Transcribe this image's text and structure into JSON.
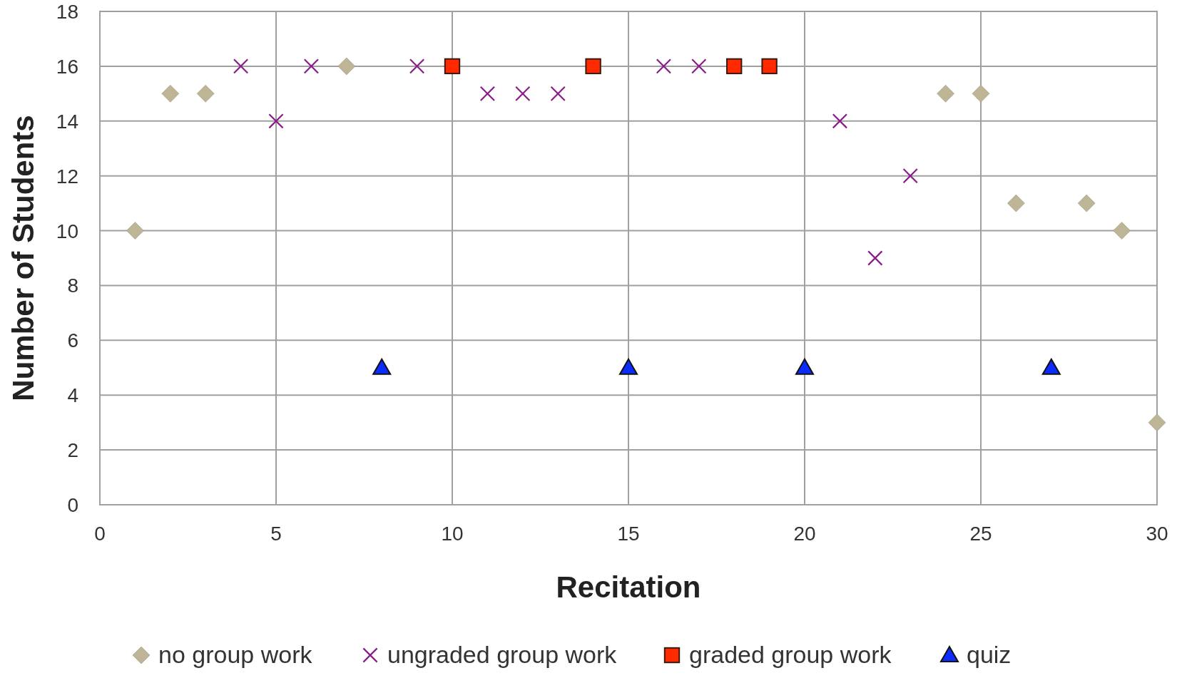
{
  "chart_data": {
    "type": "scatter",
    "xlabel": "Recitation",
    "ylabel": "Number of Students",
    "xlim": [
      0,
      30
    ],
    "xticks": [
      0,
      5,
      10,
      15,
      20,
      25,
      30
    ],
    "ylim": [
      0,
      18
    ],
    "yticks": [
      0,
      2,
      4,
      6,
      8,
      10,
      12,
      14,
      16,
      18
    ],
    "grid": true,
    "legend": "bottom",
    "series": [
      {
        "name": "no group work",
        "color": "#bdb596",
        "marker": "diamond",
        "x": [
          1,
          2,
          3,
          7,
          24,
          25,
          26,
          28,
          29,
          30
        ],
        "values": [
          10,
          15,
          15,
          16,
          15,
          15,
          11,
          11,
          10,
          3
        ]
      },
      {
        "name": "ungraded group work",
        "color": "#8a1c8a",
        "marker": "cross",
        "x": [
          4,
          5,
          6,
          9,
          11,
          12,
          13,
          16,
          17,
          21,
          22,
          23
        ],
        "values": [
          16,
          14,
          16,
          16,
          15,
          15,
          15,
          16,
          16,
          14,
          9,
          12
        ]
      },
      {
        "name": "graded group work",
        "color": "#ff2a00",
        "marker": "square",
        "x": [
          10,
          14,
          18,
          19
        ],
        "values": [
          16,
          16,
          16,
          16
        ]
      },
      {
        "name": "quiz",
        "color": "#0a2cff",
        "marker": "triangle",
        "x": [
          8,
          15,
          20,
          27
        ],
        "values": [
          5,
          5,
          5,
          5
        ]
      }
    ]
  }
}
